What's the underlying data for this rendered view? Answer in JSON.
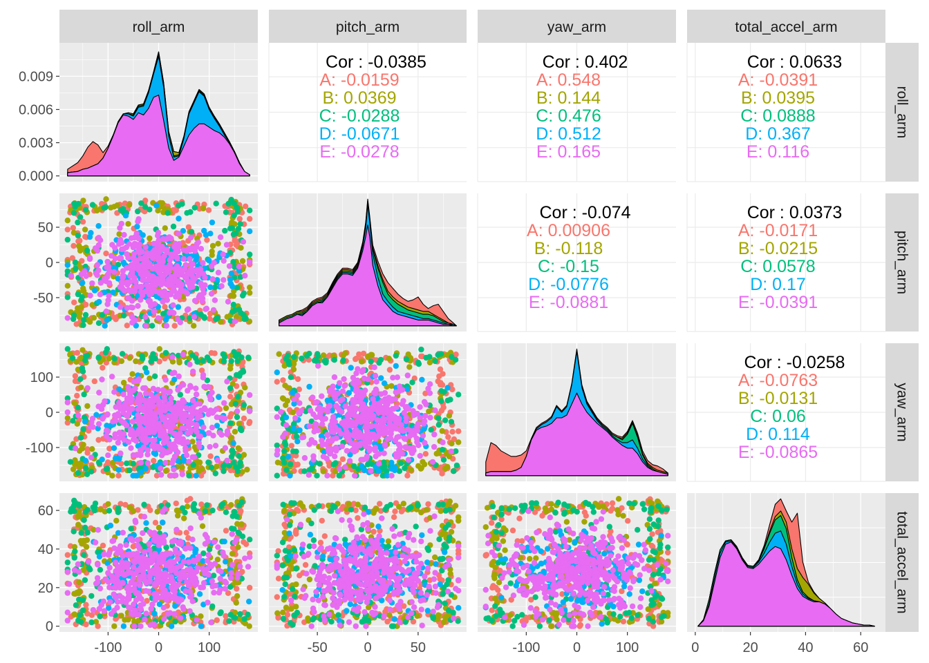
{
  "chart_data": {
    "type": "scatter",
    "title": "",
    "variables": [
      "roll_arm",
      "pitch_arm",
      "yaw_arm",
      "total_accel_arm"
    ],
    "groups": [
      "A",
      "B",
      "C",
      "D",
      "E"
    ],
    "group_colors": {
      "A": "#F8766D",
      "B": "#A3A500",
      "C": "#00BF7D",
      "D": "#00B0F6",
      "E": "#E76BF3"
    },
    "colors": {
      "panel_bg": "#EBEBEB",
      "grid": "#FFFFFF",
      "strip_bg": "#D9D9D9",
      "axis_text": "#4D4D4D",
      "cor_text": "#000000"
    },
    "axes": {
      "roll_arm": {
        "lim": [
          -180,
          180
        ],
        "ticks": [
          -100,
          0,
          100
        ],
        "tick_labels": [
          "-100",
          "0",
          "100"
        ]
      },
      "pitch_arm": {
        "lim": [
          -90,
          90
        ],
        "ticks": [
          -50,
          0,
          50
        ],
        "tick_labels": [
          "-50",
          "0",
          "50"
        ]
      },
      "yaw_arm": {
        "lim": [
          -180,
          180
        ],
        "ticks": [
          -100,
          0,
          100
        ],
        "tick_labels": [
          "-100",
          "0",
          "100"
        ]
      },
      "total_accel_arm": {
        "lim": [
          0,
          66
        ],
        "ticks": [
          0,
          20,
          40,
          60
        ],
        "tick_labels": [
          "0",
          "20",
          "40",
          "60"
        ]
      }
    },
    "density_y_axis": {
      "lim": [
        0,
        0.0115
      ],
      "ticks": [
        0,
        0.003,
        0.006,
        0.009
      ],
      "tick_labels": [
        "0.000",
        "0.003",
        "0.006",
        "0.009"
      ]
    },
    "correlations": [
      {
        "row": 0,
        "col": 1,
        "overall": "Cor : -0.0385",
        "groups": [
          "A: -0.0159",
          "B: 0.0369",
          "C: -0.0288",
          "D: -0.0671",
          "E: -0.0278"
        ]
      },
      {
        "row": 0,
        "col": 2,
        "overall": "Cor : 0.402",
        "groups": [
          "A: 0.548",
          "B: 0.144",
          "C: 0.476",
          "D: 0.512",
          "E: 0.165"
        ]
      },
      {
        "row": 0,
        "col": 3,
        "overall": "Cor : 0.0633",
        "groups": [
          "A: -0.0391",
          "B: 0.0395",
          "C: 0.0888",
          "D: 0.367",
          "E: 0.116"
        ]
      },
      {
        "row": 1,
        "col": 2,
        "overall": "Cor : -0.074",
        "groups": [
          "A: 0.00906",
          "B: -0.118",
          "C: -0.15",
          "D: -0.0776",
          "E: -0.0881"
        ]
      },
      {
        "row": 1,
        "col": 3,
        "overall": "Cor : 0.0373",
        "groups": [
          "A: -0.0171",
          "B: -0.0215",
          "C: 0.0578",
          "D: 0.17",
          "E: -0.0391"
        ]
      },
      {
        "row": 2,
        "col": 3,
        "overall": "Cor : -0.0258",
        "groups": [
          "A: -0.0763",
          "B: -0.0131",
          "C: 0.06",
          "D: 0.114",
          "E: -0.0865"
        ]
      }
    ],
    "densities": {
      "roll_arm": {
        "x": [
          -180,
          -160,
          -150,
          -140,
          -130,
          -120,
          -110,
          -100,
          -90,
          -80,
          -70,
          -60,
          -50,
          -40,
          -30,
          -20,
          -10,
          0,
          10,
          20,
          30,
          40,
          50,
          60,
          70,
          80,
          90,
          100,
          110,
          120,
          130,
          140,
          150,
          160,
          170,
          180
        ],
        "stacked_tops": {
          "E": [
            0.0003,
            0.0004,
            0.0006,
            0.0007,
            0.0009,
            0.0011,
            0.0016,
            0.0025,
            0.0036,
            0.0048,
            0.0055,
            0.0054,
            0.0051,
            0.0057,
            0.0055,
            0.0061,
            0.0071,
            0.0073,
            0.005,
            0.0025,
            0.0014,
            0.0017,
            0.0027,
            0.0037,
            0.0043,
            0.0047,
            0.0047,
            0.0044,
            0.0041,
            0.0039,
            0.0035,
            0.0029,
            0.0021,
            0.0011,
            0.0004,
            0.0001
          ],
          "D": [
            0.0003,
            0.0004,
            0.0006,
            0.0007,
            0.0009,
            0.0011,
            0.0016,
            0.0025,
            0.0036,
            0.0049,
            0.0056,
            0.0056,
            0.0054,
            0.0062,
            0.0063,
            0.0075,
            0.0092,
            0.0108,
            0.008,
            0.0036,
            0.0017,
            0.0018,
            0.0034,
            0.0056,
            0.0066,
            0.0076,
            0.0072,
            0.006,
            0.0052,
            0.0045,
            0.0037,
            0.003,
            0.0022,
            0.0012,
            0.0004,
            0.0001
          ],
          "C": [
            0.0003,
            0.0004,
            0.0006,
            0.0007,
            0.0009,
            0.0011,
            0.0016,
            0.0025,
            0.0036,
            0.0049,
            0.0056,
            0.0056,
            0.0055,
            0.0063,
            0.0064,
            0.0076,
            0.0093,
            0.011,
            0.0082,
            0.0037,
            0.0018,
            0.0019,
            0.0035,
            0.0057,
            0.0067,
            0.0077,
            0.0073,
            0.0061,
            0.0053,
            0.0046,
            0.0038,
            0.0031,
            0.0022,
            0.0012,
            0.0004,
            0.0001
          ],
          "B": [
            0.0003,
            0.0004,
            0.0006,
            0.0007,
            0.0009,
            0.0011,
            0.0016,
            0.0025,
            0.0036,
            0.0049,
            0.0056,
            0.0057,
            0.0056,
            0.0064,
            0.0065,
            0.0077,
            0.0094,
            0.0112,
            0.0084,
            0.004,
            0.0022,
            0.0021,
            0.0036,
            0.0058,
            0.0068,
            0.0078,
            0.0074,
            0.0062,
            0.0054,
            0.0047,
            0.0039,
            0.0031,
            0.0022,
            0.0012,
            0.0004,
            0.0001
          ],
          "A": [
            0.0006,
            0.0012,
            0.0018,
            0.0026,
            0.0031,
            0.0028,
            0.0021,
            0.0027,
            0.0037,
            0.0049,
            0.0056,
            0.0057,
            0.0056,
            0.0064,
            0.0065,
            0.0077,
            0.0094,
            0.0112,
            0.0084,
            0.004,
            0.0022,
            0.0021,
            0.0036,
            0.0058,
            0.0068,
            0.0078,
            0.0074,
            0.0062,
            0.0054,
            0.0047,
            0.0039,
            0.0031,
            0.0022,
            0.0012,
            0.0004,
            0.0001
          ]
        }
      },
      "pitch_arm": {
        "x": [
          -88,
          -80,
          -75,
          -70,
          -65,
          -60,
          -55,
          -50,
          -45,
          -40,
          -35,
          -30,
          -25,
          -20,
          -15,
          -10,
          -5,
          -2,
          0,
          2,
          5,
          10,
          15,
          20,
          25,
          30,
          35,
          40,
          45,
          50,
          55,
          60,
          65,
          70,
          75,
          80,
          85,
          88
        ],
        "stacked_tops": {
          "E": [
            0.02,
            0.05,
            0.06,
            0.08,
            0.07,
            0.1,
            0.14,
            0.16,
            0.16,
            0.2,
            0.26,
            0.32,
            0.36,
            0.36,
            0.35,
            0.4,
            0.52,
            0.62,
            0.7,
            0.62,
            0.42,
            0.28,
            0.18,
            0.14,
            0.1,
            0.08,
            0.07,
            0.06,
            0.05,
            0.04,
            0.04,
            0.04,
            0.03,
            0.02,
            0.01,
            0.01,
            0.0,
            0.0
          ],
          "D": [
            0.02,
            0.05,
            0.06,
            0.08,
            0.08,
            0.1,
            0.14,
            0.16,
            0.17,
            0.2,
            0.27,
            0.33,
            0.37,
            0.37,
            0.36,
            0.41,
            0.55,
            0.68,
            0.84,
            0.72,
            0.5,
            0.34,
            0.22,
            0.17,
            0.13,
            0.1,
            0.09,
            0.08,
            0.07,
            0.06,
            0.05,
            0.05,
            0.04,
            0.03,
            0.02,
            0.01,
            0.01,
            0.0
          ],
          "C": [
            0.03,
            0.06,
            0.07,
            0.09,
            0.09,
            0.11,
            0.15,
            0.17,
            0.18,
            0.21,
            0.28,
            0.34,
            0.38,
            0.38,
            0.37,
            0.42,
            0.56,
            0.7,
            0.86,
            0.74,
            0.53,
            0.4,
            0.3,
            0.22,
            0.18,
            0.15,
            0.13,
            0.11,
            0.1,
            0.09,
            0.08,
            0.08,
            0.07,
            0.05,
            0.03,
            0.02,
            0.01,
            0.0
          ],
          "B": [
            0.04,
            0.07,
            0.08,
            0.1,
            0.1,
            0.12,
            0.16,
            0.18,
            0.19,
            0.22,
            0.29,
            0.35,
            0.39,
            0.39,
            0.38,
            0.43,
            0.57,
            0.71,
            0.87,
            0.75,
            0.54,
            0.42,
            0.32,
            0.24,
            0.2,
            0.17,
            0.15,
            0.13,
            0.12,
            0.11,
            0.1,
            0.1,
            0.08,
            0.06,
            0.04,
            0.02,
            0.01,
            0.0
          ],
          "A": [
            0.04,
            0.07,
            0.08,
            0.1,
            0.11,
            0.13,
            0.17,
            0.19,
            0.2,
            0.23,
            0.3,
            0.36,
            0.4,
            0.4,
            0.39,
            0.44,
            0.58,
            0.72,
            0.88,
            0.76,
            0.56,
            0.45,
            0.36,
            0.3,
            0.26,
            0.22,
            0.19,
            0.17,
            0.18,
            0.2,
            0.15,
            0.12,
            0.14,
            0.15,
            0.1,
            0.05,
            0.02,
            0.0
          ]
        }
      },
      "yaw_arm": {
        "x": [
          -180,
          -170,
          -160,
          -150,
          -140,
          -130,
          -120,
          -110,
          -100,
          -90,
          -80,
          -70,
          -60,
          -50,
          -40,
          -30,
          -20,
          -10,
          0,
          10,
          20,
          30,
          40,
          50,
          60,
          70,
          80,
          90,
          100,
          110,
          120,
          130,
          140,
          150,
          160,
          170,
          180
        ],
        "stacked_tops": {
          "E": [
            0.02,
            0.03,
            0.03,
            0.03,
            0.03,
            0.03,
            0.04,
            0.06,
            0.14,
            0.26,
            0.33,
            0.35,
            0.36,
            0.38,
            0.42,
            0.42,
            0.44,
            0.52,
            0.6,
            0.52,
            0.46,
            0.42,
            0.38,
            0.35,
            0.32,
            0.28,
            0.25,
            0.22,
            0.2,
            0.2,
            0.16,
            0.1,
            0.06,
            0.04,
            0.03,
            0.02,
            0.01
          ],
          "D": [
            0.02,
            0.03,
            0.03,
            0.03,
            0.03,
            0.03,
            0.04,
            0.06,
            0.14,
            0.26,
            0.34,
            0.37,
            0.39,
            0.42,
            0.5,
            0.46,
            0.5,
            0.66,
            0.9,
            0.64,
            0.52,
            0.46,
            0.4,
            0.36,
            0.33,
            0.29,
            0.26,
            0.24,
            0.24,
            0.26,
            0.2,
            0.12,
            0.07,
            0.04,
            0.03,
            0.02,
            0.01
          ],
          "C": [
            0.02,
            0.03,
            0.03,
            0.03,
            0.03,
            0.03,
            0.04,
            0.06,
            0.14,
            0.26,
            0.34,
            0.37,
            0.39,
            0.42,
            0.5,
            0.46,
            0.5,
            0.66,
            0.91,
            0.65,
            0.53,
            0.47,
            0.41,
            0.37,
            0.34,
            0.3,
            0.28,
            0.26,
            0.3,
            0.38,
            0.28,
            0.15,
            0.08,
            0.05,
            0.03,
            0.02,
            0.01
          ],
          "B": [
            0.02,
            0.03,
            0.03,
            0.03,
            0.03,
            0.03,
            0.04,
            0.06,
            0.14,
            0.26,
            0.34,
            0.37,
            0.39,
            0.42,
            0.5,
            0.46,
            0.5,
            0.66,
            0.91,
            0.65,
            0.53,
            0.47,
            0.41,
            0.37,
            0.34,
            0.3,
            0.28,
            0.27,
            0.31,
            0.39,
            0.29,
            0.16,
            0.09,
            0.06,
            0.04,
            0.03,
            0.02
          ],
          "A": [
            0.1,
            0.24,
            0.22,
            0.18,
            0.16,
            0.14,
            0.14,
            0.15,
            0.18,
            0.27,
            0.35,
            0.38,
            0.4,
            0.43,
            0.51,
            0.47,
            0.51,
            0.67,
            0.92,
            0.66,
            0.54,
            0.48,
            0.42,
            0.38,
            0.35,
            0.31,
            0.29,
            0.28,
            0.32,
            0.4,
            0.31,
            0.18,
            0.11,
            0.08,
            0.07,
            0.05,
            0.02
          ]
        }
      },
      "total_accel_arm": {
        "x": [
          1,
          3,
          5,
          7,
          9,
          11,
          13,
          15,
          17,
          19,
          21,
          23,
          25,
          27,
          29,
          31,
          33,
          35,
          37,
          39,
          41,
          43,
          45,
          47,
          49,
          51,
          53,
          55,
          57,
          59,
          61,
          63,
          65
        ],
        "stacked_tops": {
          "E": [
            0.0,
            0.05,
            0.18,
            0.4,
            0.62,
            0.74,
            0.76,
            0.7,
            0.6,
            0.53,
            0.52,
            0.56,
            0.62,
            0.68,
            0.72,
            0.7,
            0.6,
            0.46,
            0.34,
            0.27,
            0.24,
            0.22,
            0.22,
            0.2,
            0.16,
            0.11,
            0.07,
            0.05,
            0.03,
            0.02,
            0.01,
            0.01,
            0.0
          ],
          "D": [
            0.0,
            0.05,
            0.2,
            0.44,
            0.66,
            0.76,
            0.77,
            0.71,
            0.61,
            0.54,
            0.53,
            0.58,
            0.66,
            0.76,
            0.84,
            0.86,
            0.74,
            0.54,
            0.38,
            0.29,
            0.25,
            0.23,
            0.22,
            0.2,
            0.16,
            0.11,
            0.07,
            0.05,
            0.03,
            0.02,
            0.01,
            0.01,
            0.0
          ],
          "C": [
            0.0,
            0.06,
            0.24,
            0.48,
            0.69,
            0.77,
            0.78,
            0.72,
            0.62,
            0.55,
            0.54,
            0.59,
            0.7,
            0.84,
            0.96,
            1.0,
            0.88,
            0.62,
            0.42,
            0.31,
            0.26,
            0.23,
            0.22,
            0.2,
            0.16,
            0.11,
            0.07,
            0.05,
            0.03,
            0.02,
            0.01,
            0.01,
            0.0
          ],
          "B": [
            0.0,
            0.06,
            0.24,
            0.48,
            0.69,
            0.77,
            0.78,
            0.72,
            0.62,
            0.55,
            0.54,
            0.59,
            0.71,
            0.86,
            0.99,
            1.04,
            0.94,
            0.7,
            0.52,
            0.44,
            0.38,
            0.3,
            0.25,
            0.21,
            0.16,
            0.11,
            0.07,
            0.05,
            0.03,
            0.02,
            0.01,
            0.01,
            0.0
          ],
          "A": [
            0.0,
            0.06,
            0.24,
            0.48,
            0.69,
            0.77,
            0.78,
            0.72,
            0.62,
            0.55,
            0.54,
            0.6,
            0.73,
            0.92,
            1.1,
            1.15,
            1.04,
            0.94,
            1.02,
            0.58,
            0.4,
            0.31,
            0.25,
            0.21,
            0.16,
            0.11,
            0.07,
            0.05,
            0.03,
            0.02,
            0.01,
            0.01,
            0.0
          ]
        }
      }
    }
  }
}
